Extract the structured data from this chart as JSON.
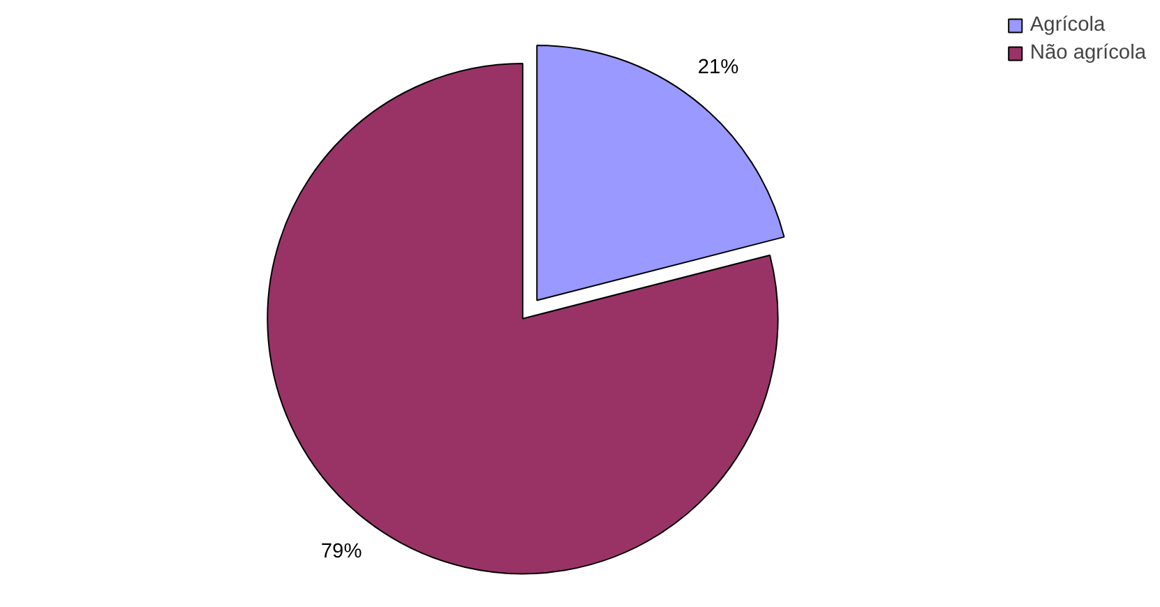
{
  "chart_data": {
    "type": "pie",
    "categories": [
      "Agrícola",
      "Não agrícola"
    ],
    "values": [
      21,
      79
    ],
    "colors": [
      "#9999ff",
      "#993366"
    ],
    "value_labels": [
      "21%",
      "79%"
    ],
    "legend": "top right"
  }
}
